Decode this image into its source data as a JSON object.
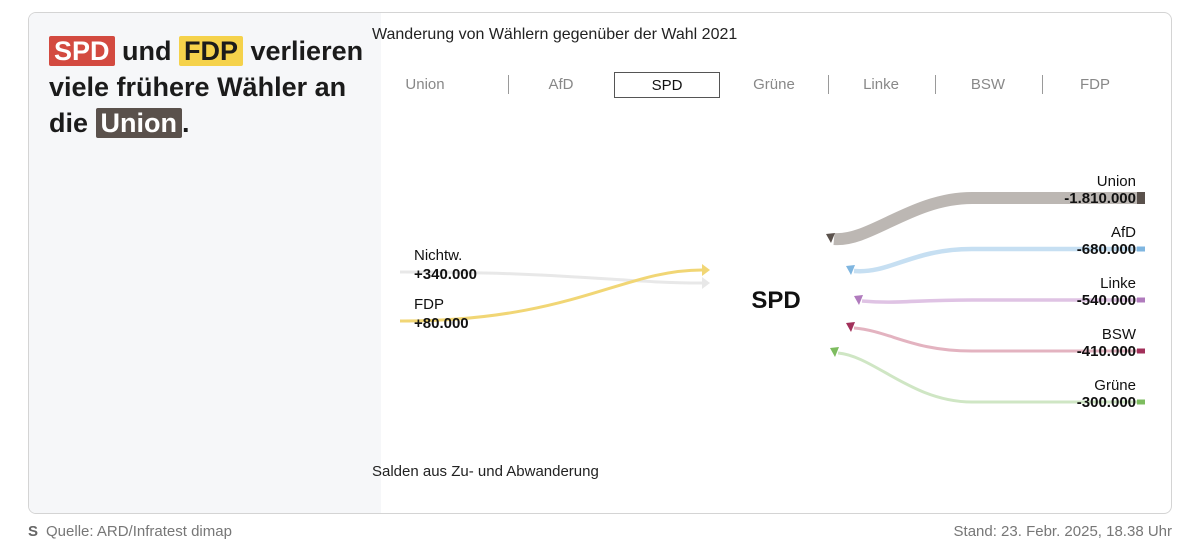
{
  "headline": {
    "party1": "SPD",
    "word1": " und ",
    "party2": "FDP",
    "word2": " verlieren viele frühere Wähler an die ",
    "party3": "Union",
    "end": "."
  },
  "subtitle": "Wanderung von Wählern gegenüber der Wahl 2021",
  "tabs": [
    {
      "label": "Union"
    },
    {
      "label": "AfD"
    },
    {
      "label": "SPD",
      "active": true
    },
    {
      "label": "Grüne"
    },
    {
      "label": "Linke"
    },
    {
      "label": "BSW"
    },
    {
      "label": "FDP"
    }
  ],
  "chart_data": {
    "type": "sankey",
    "center": "SPD",
    "gains": [
      {
        "name": "Nichtw.",
        "value": 340000,
        "label": "+340.000",
        "color": "#e8e8e8"
      },
      {
        "name": "FDP",
        "value": 80000,
        "label": "+80.000",
        "color": "#f1d675"
      }
    ],
    "losses": [
      {
        "name": "Union",
        "value": -1810000,
        "label": "-1.810.000",
        "color": "#bcb7b3",
        "end_color": "#5a514c"
      },
      {
        "name": "AfD",
        "value": -680000,
        "label": "-680.000",
        "color": "#c6dff2",
        "end_color": "#7fb6e0"
      },
      {
        "name": "Linke",
        "value": -540000,
        "label": "-540.000",
        "color": "#dfc3e4",
        "end_color": "#b07bbd"
      },
      {
        "name": "BSW",
        "value": -410000,
        "label": "-410.000",
        "color": "#e3b3c0",
        "end_color": "#a2305a"
      },
      {
        "name": "Grüne",
        "value": -300000,
        "label": "-300.000",
        "color": "#cfe6c4",
        "end_color": "#7dbc5f"
      }
    ]
  },
  "footnote": "Salden aus Zu- und Abwanderung",
  "footer": {
    "logo": "S",
    "source": "Quelle: ARD/Infratest dimap",
    "stand": "Stand: 23. Febr. 2025, 18.38 Uhr"
  }
}
